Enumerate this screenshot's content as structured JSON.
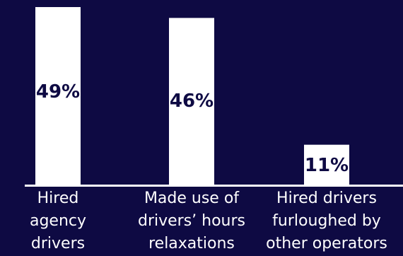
{
  "colors": {
    "background": "#0e0a43",
    "bar": "#ffffff",
    "bar_text": "#0e0a43",
    "axis": "#ffffff",
    "category_text": "#ffffff"
  },
  "chart_data": {
    "type": "bar",
    "categories": [
      [
        "Hired",
        "agency",
        "drivers"
      ],
      [
        "Made use of",
        "drivers’ hours",
        "relaxations"
      ],
      [
        "Hired drivers",
        "furloughed by",
        "other operators"
      ]
    ],
    "values": [
      49,
      46,
      11
    ],
    "value_labels": [
      "49%",
      "46%",
      "11%"
    ],
    "unit": "%",
    "ylim": [
      0,
      50
    ],
    "grid": false,
    "legend": "none"
  }
}
